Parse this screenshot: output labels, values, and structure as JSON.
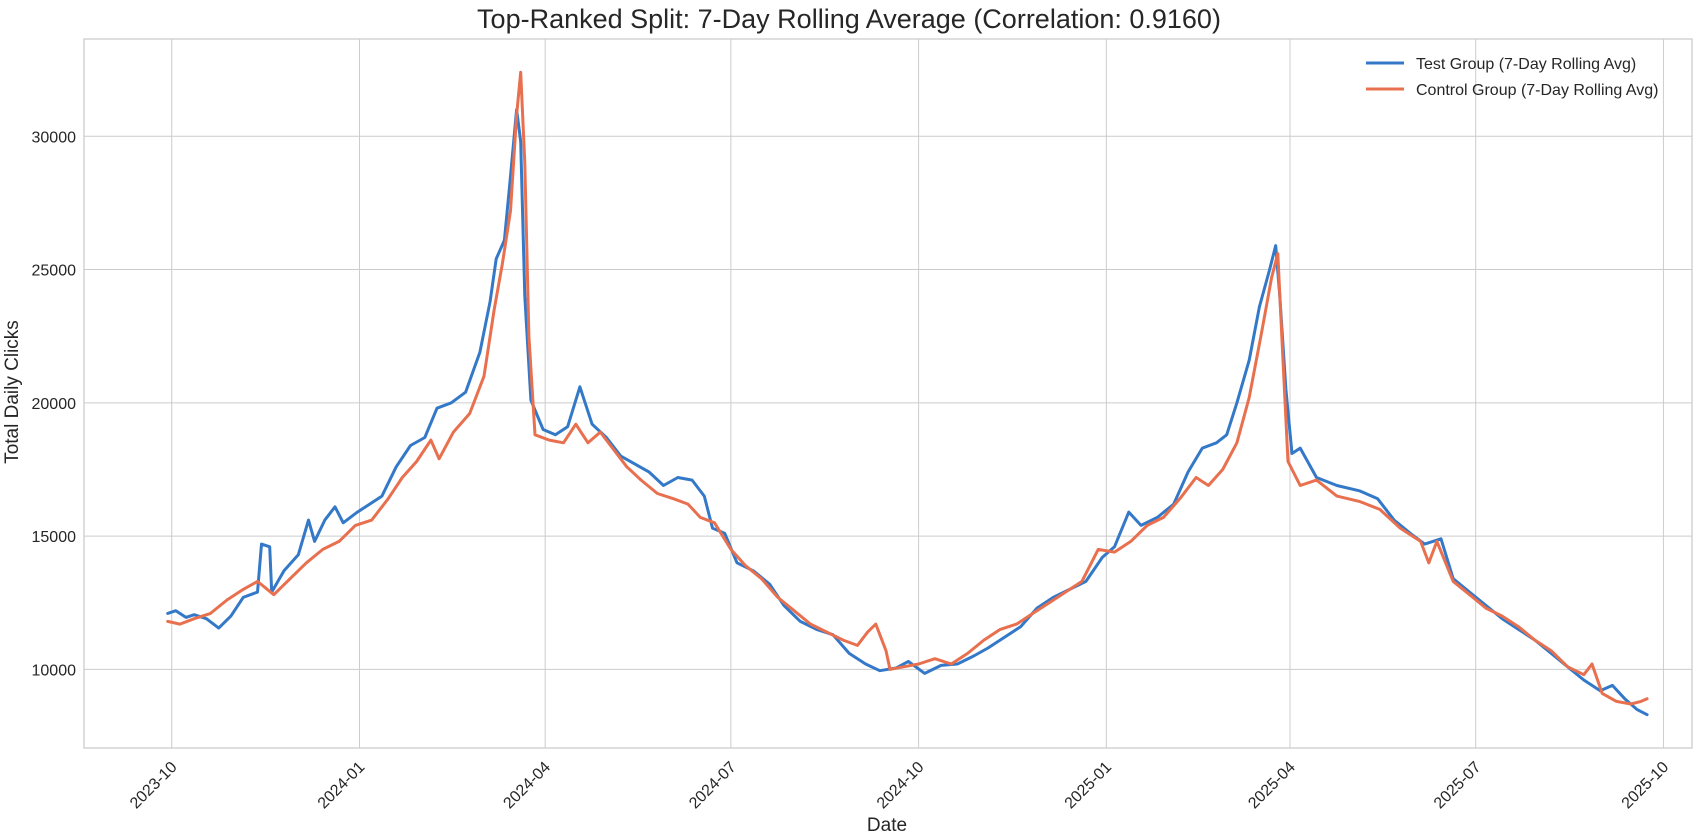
{
  "chart_data": {
    "type": "line",
    "title": "Top-Ranked Split: 7-Day Rolling Average (Correlation: 0.9160)",
    "xlabel": "Date",
    "ylabel": "Total Daily Clicks",
    "x_range": [
      "2023-08-19",
      "2025-10-15"
    ],
    "ylim": [
      7050,
      33650
    ],
    "x_ticks": [
      "2023-10",
      "2024-01",
      "2024-04",
      "2024-07",
      "2024-10",
      "2025-01",
      "2025-04",
      "2025-07",
      "2025-10"
    ],
    "y_ticks": [
      10000,
      15000,
      20000,
      25000,
      30000
    ],
    "grid": true,
    "legend_position": "top-right",
    "series": [
      {
        "name": "Test Group (7-Day Rolling Avg)",
        "color": "#3478c8",
        "points": [
          [
            "2023-09-29",
            12100
          ],
          [
            "2023-10-03",
            12200
          ],
          [
            "2023-10-08",
            11950
          ],
          [
            "2023-10-12",
            12050
          ],
          [
            "2023-10-18",
            11900
          ],
          [
            "2023-10-24",
            11550
          ],
          [
            "2023-10-30",
            12000
          ],
          [
            "2023-11-05",
            12700
          ],
          [
            "2023-11-12",
            12900
          ],
          [
            "2023-11-14",
            14700
          ],
          [
            "2023-11-18",
            14600
          ],
          [
            "2023-11-19",
            12900
          ],
          [
            "2023-11-25",
            13700
          ],
          [
            "2023-12-02",
            14300
          ],
          [
            "2023-12-07",
            15600
          ],
          [
            "2023-12-10",
            14800
          ],
          [
            "2023-12-15",
            15600
          ],
          [
            "2023-12-20",
            16100
          ],
          [
            "2023-12-24",
            15500
          ],
          [
            "2023-12-31",
            15900
          ],
          [
            "2024-01-06",
            16200
          ],
          [
            "2024-01-12",
            16500
          ],
          [
            "2024-01-19",
            17600
          ],
          [
            "2024-01-26",
            18400
          ],
          [
            "2024-02-02",
            18700
          ],
          [
            "2024-02-08",
            19800
          ],
          [
            "2024-02-15",
            20000
          ],
          [
            "2024-02-22",
            20400
          ],
          [
            "2024-02-29",
            21900
          ],
          [
            "2024-03-05",
            23800
          ],
          [
            "2024-03-08",
            25400
          ],
          [
            "2024-03-12",
            26100
          ],
          [
            "2024-03-15",
            28500
          ],
          [
            "2024-03-18",
            31000
          ],
          [
            "2024-03-20",
            29800
          ],
          [
            "2024-03-22",
            24000
          ],
          [
            "2024-03-25",
            20100
          ],
          [
            "2024-03-31",
            19000
          ],
          [
            "2024-04-06",
            18800
          ],
          [
            "2024-04-12",
            19100
          ],
          [
            "2024-04-18",
            20600
          ],
          [
            "2024-04-24",
            19200
          ],
          [
            "2024-05-01",
            18700
          ],
          [
            "2024-05-08",
            18000
          ],
          [
            "2024-05-15",
            17700
          ],
          [
            "2024-05-22",
            17400
          ],
          [
            "2024-05-29",
            16900
          ],
          [
            "2024-06-05",
            17200
          ],
          [
            "2024-06-12",
            17100
          ],
          [
            "2024-06-18",
            16500
          ],
          [
            "2024-06-22",
            15300
          ],
          [
            "2024-06-28",
            15100
          ],
          [
            "2024-07-04",
            14000
          ],
          [
            "2024-07-12",
            13700
          ],
          [
            "2024-07-20",
            13200
          ],
          [
            "2024-07-27",
            12400
          ],
          [
            "2024-08-04",
            11800
          ],
          [
            "2024-08-12",
            11500
          ],
          [
            "2024-08-20",
            11300
          ],
          [
            "2024-08-28",
            10600
          ],
          [
            "2024-09-05",
            10200
          ],
          [
            "2024-09-12",
            9950
          ],
          [
            "2024-09-20",
            10050
          ],
          [
            "2024-09-26",
            10300
          ],
          [
            "2024-10-04",
            9850
          ],
          [
            "2024-10-12",
            10150
          ],
          [
            "2024-10-20",
            10200
          ],
          [
            "2024-10-28",
            10500
          ],
          [
            "2024-11-04",
            10800
          ],
          [
            "2024-11-12",
            11200
          ],
          [
            "2024-11-20",
            11600
          ],
          [
            "2024-11-28",
            12300
          ],
          [
            "2024-12-06",
            12700
          ],
          [
            "2024-12-14",
            13000
          ],
          [
            "2024-12-22",
            13300
          ],
          [
            "2024-12-30",
            14200
          ],
          [
            "2025-01-05",
            14600
          ],
          [
            "2025-01-12",
            15900
          ],
          [
            "2025-01-18",
            15400
          ],
          [
            "2025-01-26",
            15700
          ],
          [
            "2025-02-03",
            16200
          ],
          [
            "2025-02-10",
            17400
          ],
          [
            "2025-02-17",
            18300
          ],
          [
            "2025-02-24",
            18500
          ],
          [
            "2025-03-01",
            18800
          ],
          [
            "2025-03-06",
            20000
          ],
          [
            "2025-03-12",
            21600
          ],
          [
            "2025-03-17",
            23600
          ],
          [
            "2025-03-22",
            25000
          ],
          [
            "2025-03-25",
            25900
          ],
          [
            "2025-03-27",
            24000
          ],
          [
            "2025-03-30",
            20500
          ],
          [
            "2025-04-02",
            18100
          ],
          [
            "2025-04-06",
            18300
          ],
          [
            "2025-04-14",
            17200
          ],
          [
            "2025-04-24",
            16900
          ],
          [
            "2025-05-05",
            16700
          ],
          [
            "2025-05-14",
            16400
          ],
          [
            "2025-05-22",
            15600
          ],
          [
            "2025-05-30",
            15100
          ],
          [
            "2025-06-06",
            14700
          ],
          [
            "2025-06-14",
            14900
          ],
          [
            "2025-06-20",
            13400
          ],
          [
            "2025-06-28",
            12900
          ],
          [
            "2025-07-06",
            12400
          ],
          [
            "2025-07-14",
            11900
          ],
          [
            "2025-07-22",
            11500
          ],
          [
            "2025-07-30",
            11100
          ],
          [
            "2025-08-07",
            10600
          ],
          [
            "2025-08-15",
            10100
          ],
          [
            "2025-08-23",
            9600
          ],
          [
            "2025-08-31",
            9200
          ],
          [
            "2025-09-06",
            9400
          ],
          [
            "2025-09-12",
            8900
          ],
          [
            "2025-09-18",
            8500
          ],
          [
            "2025-09-23",
            8300
          ]
        ]
      },
      {
        "name": "Control Group (7-Day Rolling Avg)",
        "color": "#e8704f",
        "points": [
          [
            "2023-09-29",
            11800
          ],
          [
            "2023-10-05",
            11700
          ],
          [
            "2023-10-12",
            11900
          ],
          [
            "2023-10-20",
            12100
          ],
          [
            "2023-10-28",
            12600
          ],
          [
            "2023-11-05",
            13000
          ],
          [
            "2023-11-12",
            13300
          ],
          [
            "2023-11-20",
            12800
          ],
          [
            "2023-11-28",
            13400
          ],
          [
            "2023-12-06",
            14000
          ],
          [
            "2023-12-14",
            14500
          ],
          [
            "2023-12-22",
            14800
          ],
          [
            "2023-12-30",
            15400
          ],
          [
            "2024-01-07",
            15600
          ],
          [
            "2024-01-15",
            16400
          ],
          [
            "2024-01-22",
            17200
          ],
          [
            "2024-01-29",
            17800
          ],
          [
            "2024-02-05",
            18600
          ],
          [
            "2024-02-09",
            17900
          ],
          [
            "2024-02-16",
            18900
          ],
          [
            "2024-02-24",
            19600
          ],
          [
            "2024-03-02",
            21000
          ],
          [
            "2024-03-07",
            23500
          ],
          [
            "2024-03-11",
            25200
          ],
          [
            "2024-03-15",
            27200
          ],
          [
            "2024-03-18",
            30800
          ],
          [
            "2024-03-20",
            32400
          ],
          [
            "2024-03-22",
            29000
          ],
          [
            "2024-03-24",
            22500
          ],
          [
            "2024-03-27",
            18800
          ],
          [
            "2024-04-03",
            18600
          ],
          [
            "2024-04-10",
            18500
          ],
          [
            "2024-04-16",
            19200
          ],
          [
            "2024-04-22",
            18500
          ],
          [
            "2024-04-28",
            18900
          ],
          [
            "2024-05-04",
            18300
          ],
          [
            "2024-05-11",
            17600
          ],
          [
            "2024-05-18",
            17100
          ],
          [
            "2024-05-26",
            16600
          ],
          [
            "2024-06-03",
            16400
          ],
          [
            "2024-06-10",
            16200
          ],
          [
            "2024-06-16",
            15700
          ],
          [
            "2024-06-23",
            15500
          ],
          [
            "2024-07-01",
            14500
          ],
          [
            "2024-07-08",
            13900
          ],
          [
            "2024-07-16",
            13400
          ],
          [
            "2024-07-24",
            12700
          ],
          [
            "2024-08-01",
            12200
          ],
          [
            "2024-08-09",
            11700
          ],
          [
            "2024-08-17",
            11400
          ],
          [
            "2024-08-25",
            11100
          ],
          [
            "2024-09-01",
            10900
          ],
          [
            "2024-09-06",
            11400
          ],
          [
            "2024-09-10",
            11700
          ],
          [
            "2024-09-15",
            10700
          ],
          [
            "2024-09-17",
            10000
          ],
          [
            "2024-09-24",
            10100
          ],
          [
            "2024-10-01",
            10200
          ],
          [
            "2024-10-09",
            10400
          ],
          [
            "2024-10-17",
            10200
          ],
          [
            "2024-10-25",
            10600
          ],
          [
            "2024-11-02",
            11100
          ],
          [
            "2024-11-10",
            11500
          ],
          [
            "2024-11-18",
            11700
          ],
          [
            "2024-11-26",
            12100
          ],
          [
            "2024-12-04",
            12500
          ],
          [
            "2024-12-12",
            12900
          ],
          [
            "2024-12-20",
            13300
          ],
          [
            "2024-12-28",
            14500
          ],
          [
            "2025-01-05",
            14400
          ],
          [
            "2025-01-13",
            14800
          ],
          [
            "2025-01-21",
            15400
          ],
          [
            "2025-01-29",
            15700
          ],
          [
            "2025-02-06",
            16400
          ],
          [
            "2025-02-14",
            17200
          ],
          [
            "2025-02-20",
            16900
          ],
          [
            "2025-02-27",
            17500
          ],
          [
            "2025-03-06",
            18500
          ],
          [
            "2025-03-12",
            20200
          ],
          [
            "2025-03-18",
            22600
          ],
          [
            "2025-03-23",
            24700
          ],
          [
            "2025-03-26",
            25600
          ],
          [
            "2025-03-28",
            22500
          ],
          [
            "2025-03-31",
            17800
          ],
          [
            "2025-04-06",
            16900
          ],
          [
            "2025-04-14",
            17100
          ],
          [
            "2025-04-24",
            16500
          ],
          [
            "2025-05-05",
            16300
          ],
          [
            "2025-05-15",
            16000
          ],
          [
            "2025-05-25",
            15300
          ],
          [
            "2025-06-04",
            14800
          ],
          [
            "2025-06-08",
            14000
          ],
          [
            "2025-06-12",
            14800
          ],
          [
            "2025-06-20",
            13300
          ],
          [
            "2025-06-28",
            12800
          ],
          [
            "2025-07-06",
            12300
          ],
          [
            "2025-07-14",
            12000
          ],
          [
            "2025-07-22",
            11600
          ],
          [
            "2025-07-30",
            11100
          ],
          [
            "2025-08-07",
            10700
          ],
          [
            "2025-08-15",
            10100
          ],
          [
            "2025-08-23",
            9800
          ],
          [
            "2025-08-27",
            10200
          ],
          [
            "2025-09-01",
            9100
          ],
          [
            "2025-09-08",
            8800
          ],
          [
            "2025-09-15",
            8700
          ],
          [
            "2025-09-20",
            8800
          ],
          [
            "2025-09-23",
            8900
          ]
        ]
      }
    ]
  }
}
